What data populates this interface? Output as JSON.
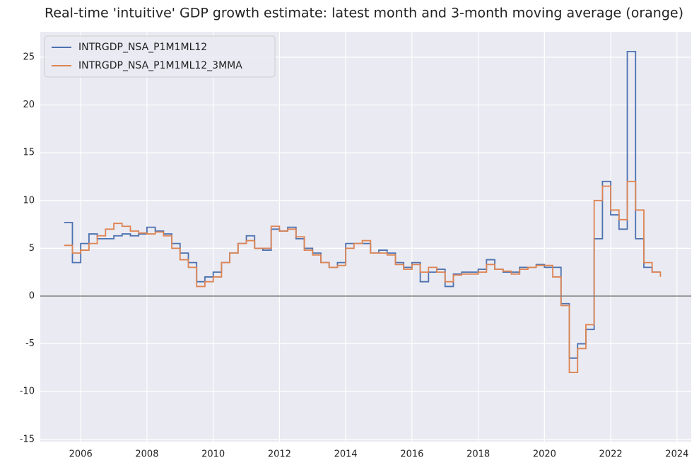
{
  "chart_data": {
    "type": "line",
    "title": "Real-time 'intuitive' GDP growth estimate: latest month and 3-month moving average (orange)",
    "x": [
      2005.5,
      2005.75,
      2006,
      2006.25,
      2006.5,
      2006.75,
      2007,
      2007.25,
      2007.5,
      2007.75,
      2008,
      2008.25,
      2008.5,
      2008.75,
      2009,
      2009.25,
      2009.5,
      2009.75,
      2010,
      2010.25,
      2010.5,
      2010.75,
      2011,
      2011.25,
      2011.5,
      2011.75,
      2012,
      2012.25,
      2012.5,
      2012.75,
      2013,
      2013.25,
      2013.5,
      2013.75,
      2014,
      2014.25,
      2014.5,
      2014.75,
      2015,
      2015.25,
      2015.5,
      2015.75,
      2016,
      2016.25,
      2016.5,
      2016.75,
      2017,
      2017.25,
      2017.5,
      2017.75,
      2018,
      2018.25,
      2018.5,
      2018.75,
      2019,
      2019.25,
      2019.5,
      2019.75,
      2020,
      2020.25,
      2020.5,
      2020.75,
      2021,
      2021.25,
      2021.5,
      2021.75,
      2022,
      2022.25,
      2022.5,
      2022.75,
      2023,
      2023.25,
      2023.5
    ],
    "series": [
      {
        "name": "INTRGDP_NSA_P1M1ML12",
        "color": "#4c72b0",
        "values": [
          7.7,
          3.5,
          5.5,
          6.5,
          6.0,
          6.0,
          6.3,
          6.5,
          6.3,
          6.5,
          7.2,
          6.8,
          6.5,
          5.5,
          4.5,
          3.5,
          1.5,
          2.0,
          2.5,
          3.5,
          4.5,
          5.5,
          6.3,
          5.0,
          4.8,
          7.0,
          6.8,
          7.2,
          6.0,
          5.0,
          4.5,
          3.5,
          3.0,
          3.5,
          5.5,
          5.5,
          5.5,
          4.5,
          4.8,
          4.5,
          3.5,
          3.0,
          3.5,
          1.5,
          2.5,
          2.8,
          1.0,
          2.3,
          2.5,
          2.5,
          2.8,
          3.8,
          2.8,
          2.5,
          2.5,
          3.0,
          3.0,
          3.3,
          3.0,
          3.0,
          -0.8,
          -6.5,
          -5.0,
          -3.5,
          6.0,
          12.0,
          8.5,
          7.0,
          25.6,
          6.0,
          3.0,
          2.5,
          2.5
        ]
      },
      {
        "name": "INTRGDP_NSA_P1M1ML12_3MMA",
        "color": "#dd8452",
        "values": [
          5.3,
          4.5,
          4.8,
          5.5,
          6.3,
          7.0,
          7.6,
          7.3,
          6.8,
          6.6,
          6.5,
          6.7,
          6.3,
          5.0,
          3.8,
          3.0,
          1.0,
          1.5,
          2.0,
          3.5,
          4.5,
          5.5,
          5.8,
          5.0,
          5.0,
          7.3,
          6.8,
          7.0,
          6.2,
          4.8,
          4.3,
          3.5,
          3.0,
          3.2,
          5.0,
          5.5,
          5.8,
          4.5,
          4.5,
          4.3,
          3.3,
          2.8,
          3.3,
          2.5,
          3.0,
          2.5,
          1.5,
          2.2,
          2.3,
          2.3,
          2.5,
          3.3,
          2.8,
          2.6,
          2.3,
          2.8,
          3.0,
          3.2,
          3.2,
          2.0,
          -1.0,
          -8.0,
          -5.5,
          -3.0,
          10.0,
          11.5,
          9.0,
          8.0,
          12.0,
          9.0,
          3.5,
          2.5,
          2.0
        ]
      }
    ],
    "xlim": [
      2004.78,
      2024.43
    ],
    "xticks": [
      2006,
      2008,
      2010,
      2012,
      2014,
      2016,
      2018,
      2020,
      2022,
      2024
    ],
    "ylim": [
      -15.24,
      27.66
    ],
    "yticks": [
      -15,
      -10,
      -5,
      0,
      5,
      10,
      15,
      20,
      25
    ],
    "hline": 0,
    "grid": true,
    "legend": "upper left",
    "step": true
  }
}
